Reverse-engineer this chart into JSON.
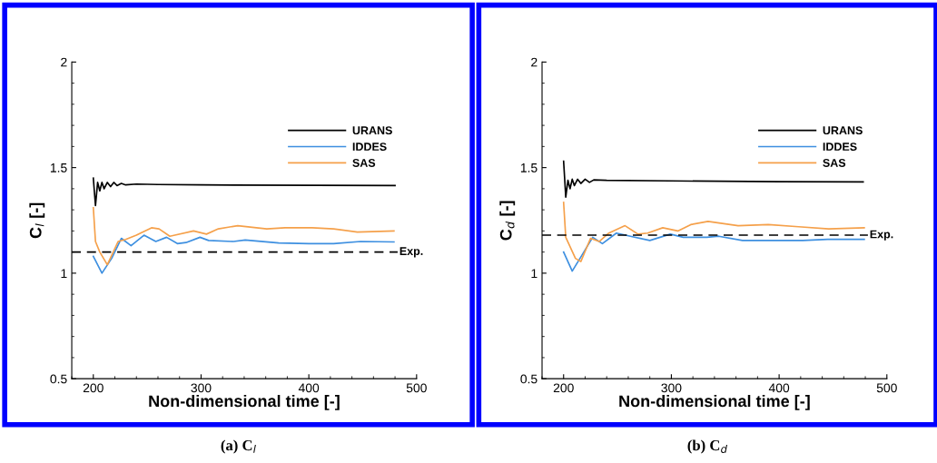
{
  "chart_data": [
    {
      "type": "line",
      "ylabel": "C$_{l}$ [-]",
      "xlabel": "Non-dimensional time [-]",
      "annotations": [
        "(a) C$_{l}$"
      ],
      "xlim": [
        180,
        500
      ],
      "xticks": [
        200,
        300,
        400,
        500
      ],
      "ylim": [
        0.5,
        2
      ],
      "yticks": [
        0.5,
        1,
        1.5,
        2
      ],
      "grid": false,
      "legend": "top right",
      "line_style": "solid",
      "series": [
        {
          "name": "URANS",
          "color": "#000000",
          "x": [
            200,
            202,
            204,
            206,
            208,
            210,
            213,
            216,
            219,
            222,
            226,
            230,
            240,
            260,
            300,
            480
          ],
          "values": [
            1.45,
            1.32,
            1.43,
            1.39,
            1.43,
            1.4,
            1.43,
            1.41,
            1.43,
            1.415,
            1.425,
            1.418,
            1.422,
            1.42,
            1.418,
            1.415
          ]
        },
        {
          "name": "IDDES",
          "color": "#3d8fe0",
          "x": [
            200,
            208,
            217,
            226,
            235,
            247,
            258,
            268,
            278,
            286,
            299,
            307,
            330,
            341,
            372,
            400,
            423,
            448,
            479
          ],
          "values": [
            1.08,
            1.0,
            1.07,
            1.165,
            1.13,
            1.18,
            1.15,
            1.17,
            1.14,
            1.145,
            1.17,
            1.155,
            1.15,
            1.157,
            1.143,
            1.14,
            1.14,
            1.15,
            1.148
          ]
        },
        {
          "name": "SAS",
          "color": "#f5a04a",
          "x": [
            200,
            202,
            206,
            213,
            223,
            230,
            240,
            254,
            261,
            271,
            293,
            305,
            316,
            334,
            361,
            378,
            403,
            423,
            445,
            479
          ],
          "values": [
            1.31,
            1.15,
            1.1,
            1.04,
            1.15,
            1.16,
            1.18,
            1.215,
            1.21,
            1.175,
            1.2,
            1.185,
            1.21,
            1.225,
            1.21,
            1.215,
            1.215,
            1.21,
            1.195,
            1.2
          ]
        }
      ],
      "ref_lines": [
        {
          "axis": "y",
          "value": 1.1,
          "label": "Exp.",
          "color": "#000000",
          "line_style": "dashed"
        }
      ]
    },
    {
      "type": "line",
      "ylabel": "C$_{d}$ [-]",
      "xlabel": "Non-dimensional time [-]",
      "annotations": [
        "(b) C$_{d}$"
      ],
      "xlim": [
        180,
        500
      ],
      "xticks": [
        200,
        300,
        400,
        500
      ],
      "ylim": [
        0.5,
        2
      ],
      "yticks": [
        0.5,
        1,
        1.5,
        2
      ],
      "grid": false,
      "legend": "top right",
      "line_style": "solid",
      "series": [
        {
          "name": "URANS",
          "color": "#000000",
          "x": [
            200,
            202,
            204,
            206,
            208,
            210,
            213,
            216,
            220,
            224,
            228,
            240,
            300,
            400,
            478
          ],
          "values": [
            1.53,
            1.36,
            1.44,
            1.4,
            1.445,
            1.415,
            1.445,
            1.425,
            1.445,
            1.43,
            1.442,
            1.44,
            1.437,
            1.433,
            1.432
          ]
        },
        {
          "name": "IDDES",
          "color": "#3d8fe0",
          "x": [
            200,
            208,
            217,
            227,
            236,
            249,
            262,
            280,
            299,
            311,
            333,
            344,
            366,
            397,
            422,
            445,
            479
          ],
          "values": [
            1.1,
            1.01,
            1.085,
            1.17,
            1.14,
            1.19,
            1.175,
            1.155,
            1.185,
            1.17,
            1.17,
            1.175,
            1.155,
            1.155,
            1.155,
            1.16,
            1.16
          ]
        },
        {
          "name": "SAS",
          "color": "#f5a04a",
          "x": [
            200,
            202,
            211,
            216,
            225,
            233,
            242,
            257,
            269,
            278,
            292,
            306,
            318,
            334,
            362,
            390,
            418,
            446,
            479
          ],
          "values": [
            1.335,
            1.17,
            1.07,
            1.055,
            1.165,
            1.15,
            1.19,
            1.225,
            1.185,
            1.19,
            1.215,
            1.2,
            1.23,
            1.245,
            1.225,
            1.23,
            1.22,
            1.21,
            1.215
          ]
        }
      ],
      "ref_lines": [
        {
          "axis": "y",
          "value": 1.18,
          "label": "Exp.",
          "color": "#000000",
          "line_style": "dashed"
        }
      ]
    }
  ]
}
